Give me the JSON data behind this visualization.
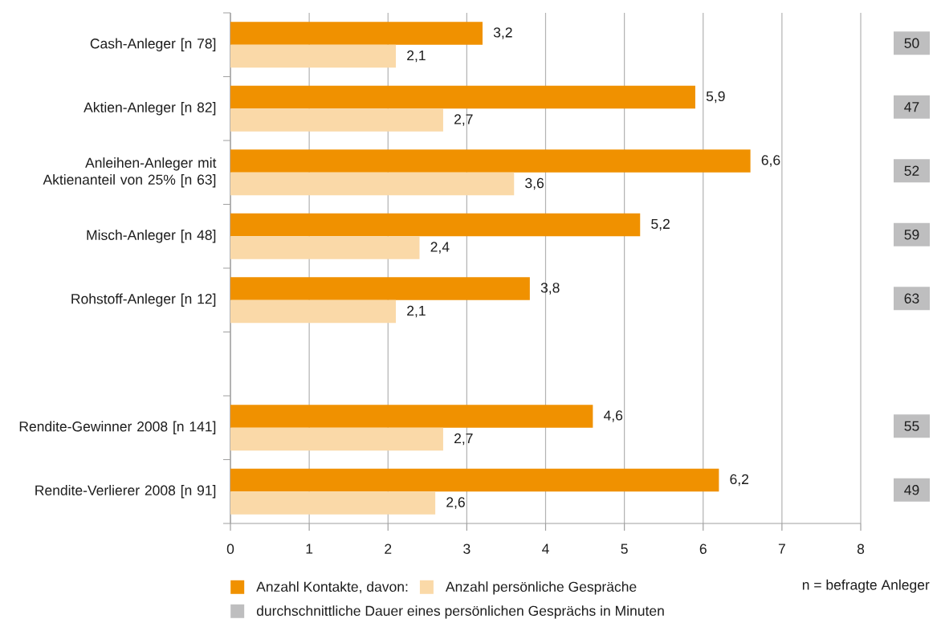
{
  "chart_data": [
    {
      "type": "bar",
      "orientation": "horizontal",
      "categories": [
        "Cash-Anleger [n 78]",
        "Aktien-Anleger [n 82]",
        "Anleihen-Anleger mit Aktienanteil von 25% [n 63]",
        "Misch-Anleger [n 48]",
        "Rohstoff-Anleger [n 12]",
        null,
        "Rendite-Gewinner 2008 [n 141]",
        "Rendite-Verlierer 2008 [n 91]"
      ],
      "series": [
        {
          "name": "Anzahl Kontakte, davon:",
          "color": "#f09100",
          "values": [
            3.2,
            5.9,
            6.6,
            5.2,
            3.8,
            null,
            4.6,
            6.2
          ],
          "value_labels": [
            "3,2",
            "5,9",
            "6,6",
            "5,2",
            "3,8",
            null,
            "4,6",
            "6,2"
          ]
        },
        {
          "name": "Anzahl persönliche Gespräche",
          "color": "#fad9a8",
          "values": [
            2.1,
            2.7,
            3.6,
            2.4,
            2.1,
            null,
            2.7,
            2.6
          ],
          "value_labels": [
            "2,1",
            "2,7",
            "3,6",
            "2,4",
            "2,1",
            null,
            "2,7",
            "2,6"
          ]
        }
      ],
      "xlim": [
        0,
        8
      ],
      "xticks": [
        0,
        1,
        2,
        3,
        4,
        5,
        6,
        7,
        8
      ],
      "grid": "x",
      "legend": "bottom",
      "annotations": [
        "n = befragte Anleger"
      ]
    },
    {
      "type": "other",
      "series": [
        {
          "name": "durchschnittliche Dauer eines persönlichen Gesprächs in Minuten",
          "color": "#bebebf",
          "values": [
            50,
            47,
            52,
            59,
            63,
            null,
            55,
            49
          ],
          "value_labels": [
            "50",
            "47",
            "52",
            "59",
            "63",
            null,
            "55",
            "49"
          ]
        }
      ],
      "legend": "bottom"
    }
  ]
}
